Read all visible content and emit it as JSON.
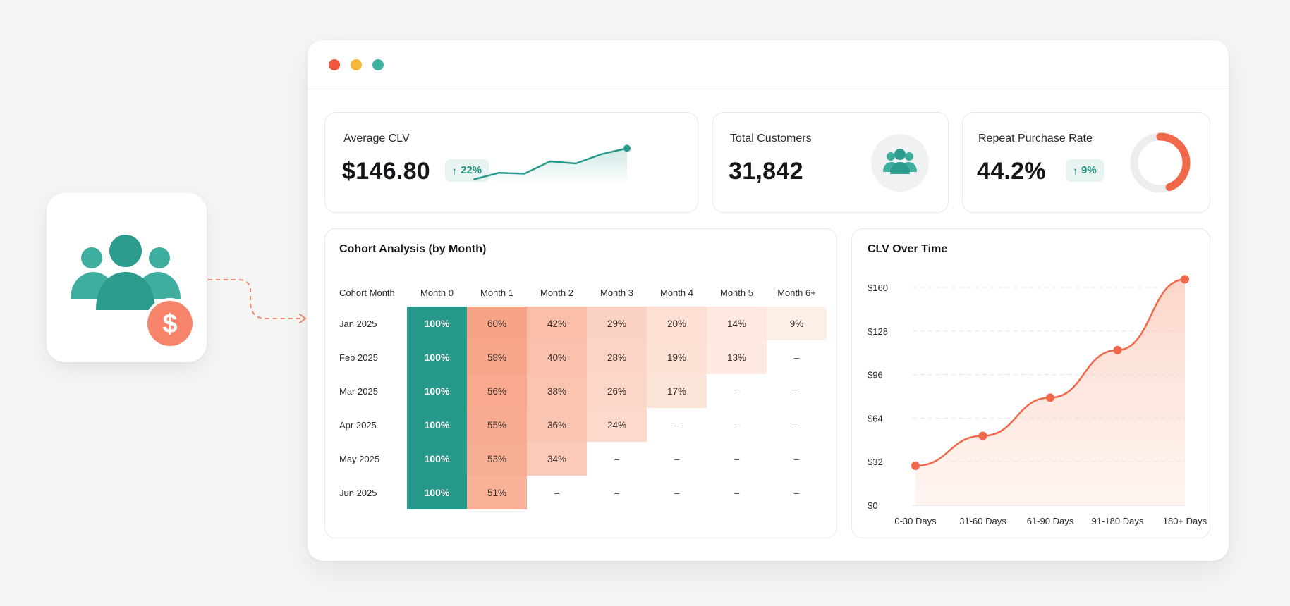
{
  "colors": {
    "teal": "#26998b",
    "orange": "#f0674a",
    "coral_icon": "#f7836a",
    "badge_bg": "#e7f4f1",
    "badge_text": "#23917f"
  },
  "app_icon": {
    "icon": "customers-dollar-icon",
    "currency_symbol": "$"
  },
  "window": {
    "controls": [
      "close",
      "minimize",
      "maximize"
    ]
  },
  "kpis": {
    "average_clv": {
      "label": "Average CLV",
      "value": "$146.80",
      "change": "22%",
      "change_direction": "up",
      "sparkline": [
        12,
        28,
        26,
        55,
        50,
        72,
        86
      ]
    },
    "total_customers": {
      "label": "Total Customers",
      "value": "31,842",
      "icon": "people-icon"
    },
    "repeat_purchase_rate": {
      "label": "Repeat Purchase Rate",
      "value": "44.2%",
      "change": "9%",
      "change_direction": "up",
      "ring_fraction": 0.442
    }
  },
  "cohort": {
    "title": "Cohort Analysis (by Month)",
    "columns": [
      "Cohort Month",
      "Month 0",
      "Month 1",
      "Month 2",
      "Month 3",
      "Month 4",
      "Month 5",
      "Month 6+"
    ],
    "rows": [
      {
        "label": "Jan 2025",
        "values": [
          "100%",
          "60%",
          "42%",
          "29%",
          "20%",
          "14%",
          "9%"
        ]
      },
      {
        "label": "Feb 2025",
        "values": [
          "100%",
          "58%",
          "40%",
          "28%",
          "19%",
          "13%",
          "–"
        ]
      },
      {
        "label": "Mar 2025",
        "values": [
          "100%",
          "56%",
          "38%",
          "26%",
          "17%",
          "–",
          "–"
        ]
      },
      {
        "label": "Apr 2025",
        "values": [
          "100%",
          "55%",
          "36%",
          "24%",
          "–",
          "–",
          "–"
        ]
      },
      {
        "label": "May 2025",
        "values": [
          "100%",
          "53%",
          "34%",
          "–",
          "–",
          "–",
          "–"
        ]
      },
      {
        "label": "Jun 2025",
        "values": [
          "100%",
          "51%",
          "–",
          "–",
          "–",
          "–",
          "–"
        ]
      }
    ]
  },
  "chart_data": {
    "type": "area",
    "title": "CLV Over Time",
    "categories": [
      "0-30 Days",
      "31-60 Days",
      "61-90 Days",
      "91-180 Days",
      "180+ Days"
    ],
    "values": [
      29,
      51,
      79,
      114,
      166
    ],
    "ylim": [
      0,
      160
    ],
    "yticks": [
      0,
      32,
      64,
      96,
      128,
      160
    ],
    "ytick_labels": [
      "$0",
      "$32",
      "$64",
      "$96",
      "$128",
      "$160"
    ],
    "grid": true,
    "legend": "none"
  }
}
